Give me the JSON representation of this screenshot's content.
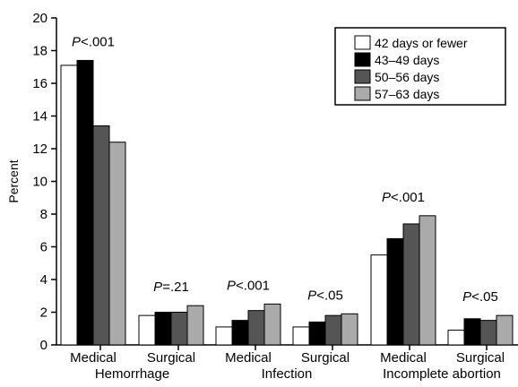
{
  "chart_data": {
    "type": "bar",
    "ylabel": "Percent",
    "ylim": [
      0,
      20
    ],
    "yticks": [
      "0",
      "2",
      "4",
      "6",
      "8",
      "10",
      "12",
      "14",
      "16",
      "18",
      "20"
    ],
    "categories": [
      "Medical",
      "Surgical",
      "Medical",
      "Surgical",
      "Medical",
      "Surgical"
    ],
    "groups": [
      "Hemorrhage",
      "Infection",
      "Incomplete abortion"
    ],
    "p_values": [
      "P<.001",
      "P=.21",
      "P<.001",
      "P<.05",
      "P<.001",
      "P<.05"
    ],
    "series": [
      {
        "name": "42 days or fewer",
        "color": "#ffffff",
        "values": [
          17.1,
          1.8,
          1.1,
          1.1,
          5.5,
          0.9
        ]
      },
      {
        "name": "43–49 days",
        "color": "#000000",
        "values": [
          17.4,
          2.0,
          1.5,
          1.4,
          6.5,
          1.6
        ]
      },
      {
        "name": "50–56 days",
        "color": "#555555",
        "values": [
          13.4,
          2.0,
          2.1,
          1.8,
          7.4,
          1.5
        ]
      },
      {
        "name": "57–63 days",
        "color": "#aaaaaa",
        "values": [
          12.4,
          2.4,
          2.5,
          1.9,
          7.9,
          1.8
        ]
      }
    ],
    "legend_position": "top-right",
    "grid": false
  }
}
